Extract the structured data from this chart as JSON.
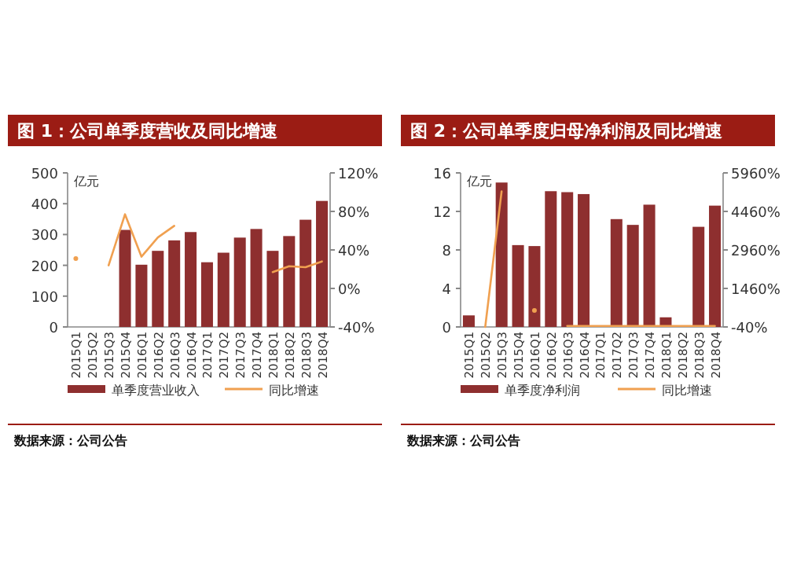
{
  "chart_data": [
    {
      "type": "bar",
      "title": "图 1：公司单季度营收及同比增速",
      "ylabel": "亿元",
      "categories": [
        "2015Q1",
        "2015Q2",
        "2015Q3",
        "2015Q4",
        "2016Q1",
        "2016Q2",
        "2016Q3",
        "2016Q4",
        "2017Q1",
        "2017Q2",
        "2017Q3",
        "2017Q4",
        "2018Q1",
        "2018Q2",
        "2018Q3",
        "2018Q4"
      ],
      "series": [
        {
          "name": "单季度营业收入",
          "color": "#8e2f2f",
          "values": [
            null,
            null,
            null,
            315,
            202,
            247,
            281,
            308,
            210,
            241,
            290,
            318,
            247,
            295,
            348,
            409
          ]
        },
        {
          "name": "同比增速",
          "type": "line",
          "axis": "y2",
          "color": "#f0a050",
          "values": [
            31,
            null,
            24,
            77,
            33,
            53,
            65,
            null,
            null,
            null,
            null,
            null,
            17,
            23,
            22,
            28
          ]
        }
      ],
      "ylim": [
        0,
        500
      ],
      "yticks": [
        0,
        100,
        200,
        300,
        400,
        500
      ],
      "y2lim": [
        -40,
        120
      ],
      "y2ticks": [
        {
          "value": -40,
          "label": "-40%"
        },
        {
          "value": 0,
          "label": "0%"
        },
        {
          "value": 40,
          "label": "40%"
        },
        {
          "value": 80,
          "label": "80%"
        },
        {
          "value": 120,
          "label": "120%"
        }
      ],
      "legend": "bottom",
      "annotations": [
        "数据来源：公司公告"
      ]
    },
    {
      "type": "bar",
      "title": "图 2：公司单季度归母净利润及同比增速",
      "ylabel": "亿元",
      "categories": [
        "2015Q1",
        "2015Q2",
        "2015Q3",
        "2015Q4",
        "2016Q1",
        "2016Q2",
        "2016Q3",
        "2016Q4",
        "2017Q1",
        "2017Q2",
        "2017Q3",
        "2017Q4",
        "2018Q1",
        "2018Q2",
        "2018Q3",
        "2018Q4"
      ],
      "series": [
        {
          "name": "单季度净利润",
          "color": "#8e2f2f",
          "values": [
            1.2,
            null,
            15.0,
            8.5,
            8.4,
            14.1,
            14.0,
            13.8,
            null,
            11.2,
            10.6,
            12.7,
            1.0,
            null,
            10.4,
            12.6
          ]
        },
        {
          "name": "同比增速",
          "type": "line",
          "axis": "y2",
          "color": "#f0a050",
          "values": [
            null,
            -40,
            5240,
            null,
            600,
            null,
            0,
            0,
            0,
            0,
            0,
            0,
            0,
            0,
            0,
            0
          ]
        }
      ],
      "ylim": [
        0,
        16
      ],
      "yticks": [
        0,
        4,
        8,
        12,
        16
      ],
      "y2lim": [
        -40,
        5960
      ],
      "y2ticks": [
        {
          "value": -40,
          "label": "-40%"
        },
        {
          "value": 1460,
          "label": "1460%"
        },
        {
          "value": 2960,
          "label": "2960%"
        },
        {
          "value": 4460,
          "label": "4460%"
        },
        {
          "value": 5960,
          "label": "5960%"
        }
      ],
      "legend": "bottom",
      "annotations": [
        "数据来源：公司公告"
      ]
    }
  ]
}
